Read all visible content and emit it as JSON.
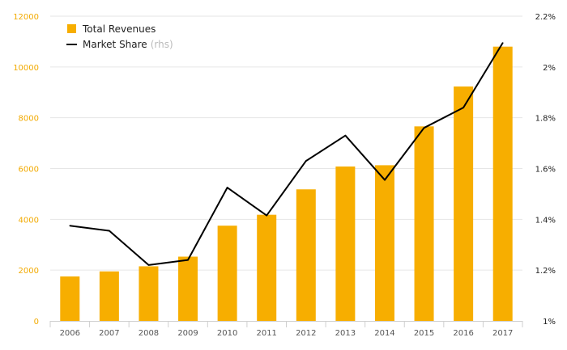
{
  "chart_data": {
    "type": "bar",
    "categories": [
      "2006",
      "2007",
      "2008",
      "2009",
      "2010",
      "2011",
      "2012",
      "2013",
      "2014",
      "2015",
      "2016",
      "2017"
    ],
    "series": [
      {
        "name": "Total Revenues",
        "kind": "bar",
        "axis": "left",
        "color": "#f7ae00",
        "values": [
          1750,
          1950,
          2150,
          2530,
          3750,
          4180,
          5180,
          6080,
          6130,
          7660,
          9230,
          10800
        ]
      },
      {
        "name": "Market Share",
        "kind": "line",
        "axis": "right",
        "color": "#000000",
        "values": [
          1.375,
          1.355,
          1.22,
          1.24,
          1.525,
          1.415,
          1.63,
          1.73,
          1.555,
          1.76,
          1.84,
          2.095
        ]
      }
    ],
    "legend": {
      "position": "top-left",
      "items": [
        {
          "label": "Total Revenues",
          "note": ""
        },
        {
          "label": "Market Share",
          "note": "(rhs)"
        }
      ]
    },
    "y_left": {
      "lim": [
        0,
        12000
      ],
      "ticks": [
        "0",
        "2000",
        "4000",
        "6000",
        "8000",
        "10000",
        "12000"
      ],
      "color": "#f2aa00"
    },
    "y_right": {
      "lim": [
        1.0,
        2.2
      ],
      "ticks": [
        "1%",
        "1.2%",
        "1.4%",
        "1.6%",
        "1.8%",
        "2%",
        "2.2%"
      ]
    },
    "grid": true
  }
}
